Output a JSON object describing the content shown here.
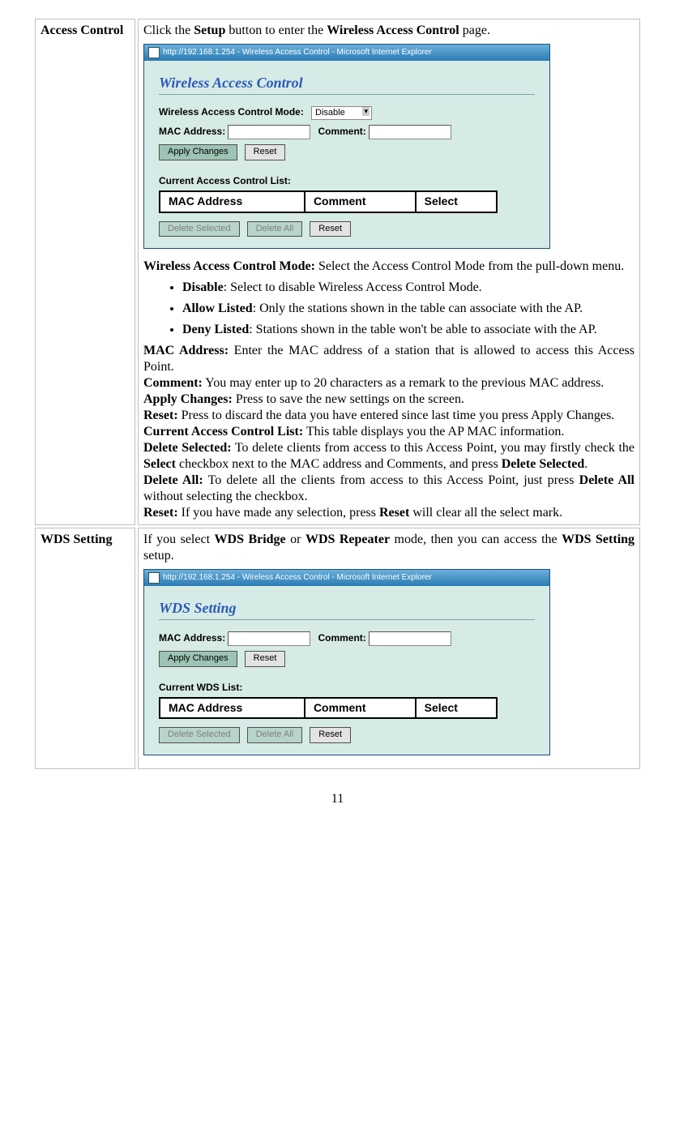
{
  "rows": [
    {
      "label": "Access Control",
      "intro_pre": "Click the ",
      "intro_b1": "Setup",
      "intro_mid": " button to enter the ",
      "intro_b2": "Wireless Access Control",
      "intro_post": " page.",
      "window": {
        "title": "http://192.168.1.254 - Wireless Access Control - Microsoft Internet Explorer",
        "heading": "Wireless Access Control",
        "mode_label": "Wireless Access Control Mode:",
        "mode_value": "Disable",
        "mac_label": "MAC Address:",
        "comment_label": "Comment:",
        "apply_btn": "Apply Changes",
        "reset_btn": "Reset",
        "list_label": "Current Access Control List:",
        "col_mac": "MAC Address",
        "col_comment": "Comment",
        "col_select": "Select",
        "del_sel_btn": "Delete Selected",
        "del_all_btn": "Delete All",
        "reset2_btn": "Reset"
      },
      "desc": {
        "mode_head": "Wireless Access Control Mode:",
        "mode_tail": " Select the Access Control Mode from the pull-down menu.",
        "bullets": [
          {
            "b": "Disable",
            "t": ": Select to disable Wireless Access Control Mode."
          },
          {
            "b": "Allow Listed",
            "t": ": Only the stations shown in the table can associate with the AP."
          },
          {
            "b": "Deny Listed",
            "t": ": Stations shown in the table won't be able to associate with the AP."
          }
        ],
        "mac_b": "MAC Address:",
        "mac_t": " Enter the MAC address of a station that is allowed to access this Access Point.",
        "cmt_b": "Comment:",
        "cmt_t": " You may enter up to 20 characters as a remark to the previous MAC address.",
        "apl_b": "Apply Changes:",
        "apl_t": " Press to save the new settings on the screen.",
        "rst_b": "Reset:",
        "rst_t": " Press to discard the data you have entered since last time you press Apply Changes.",
        "lst_b": "Current Access Control List:",
        "lst_t": " This table displays you the AP MAC information.",
        "dsel_b": "Delete Selected:",
        "dsel_t1": " To delete clients from access to this Access Point, you may firstly check the ",
        "dsel_tb": "Select",
        "dsel_t2": " checkbox next to the MAC address and Comments, and press ",
        "dsel_tb2": "Delete Selected",
        "dsel_t3": ".",
        "dall_b": "Delete All:",
        "dall_t1": " To delete all the clients from access to this Access Point, just press ",
        "dall_tb": "Delete All",
        "dall_t2": " without selecting the checkbox.",
        "rst2_b": "Reset:",
        "rst2_t1": " If you have made any selection, press ",
        "rst2_tb": "Reset",
        "rst2_t2": " will clear all the select mark."
      }
    },
    {
      "label": "WDS Setting",
      "intro_pre": "If you select ",
      "intro_b1": "WDS Bridge",
      "intro_mid": " or ",
      "intro_b2": "WDS Repeater",
      "intro_mid2": " mode, then you can access the ",
      "intro_b3": "WDS Setting",
      "intro_post": " setup.",
      "window": {
        "title": "http://192.168.1.254 - Wireless Access Control - Microsoft Internet Explorer",
        "heading": "WDS Setting",
        "mac_label": "MAC Address:",
        "comment_label": "Comment:",
        "apply_btn": "Apply Changes",
        "reset_btn": "Reset",
        "list_label": "Current WDS List:",
        "col_mac": "MAC Address",
        "col_comment": "Comment",
        "col_select": "Select",
        "del_sel_btn": "Delete Selected",
        "del_all_btn": "Delete All",
        "reset2_btn": "Reset"
      }
    }
  ],
  "page_number": "11"
}
